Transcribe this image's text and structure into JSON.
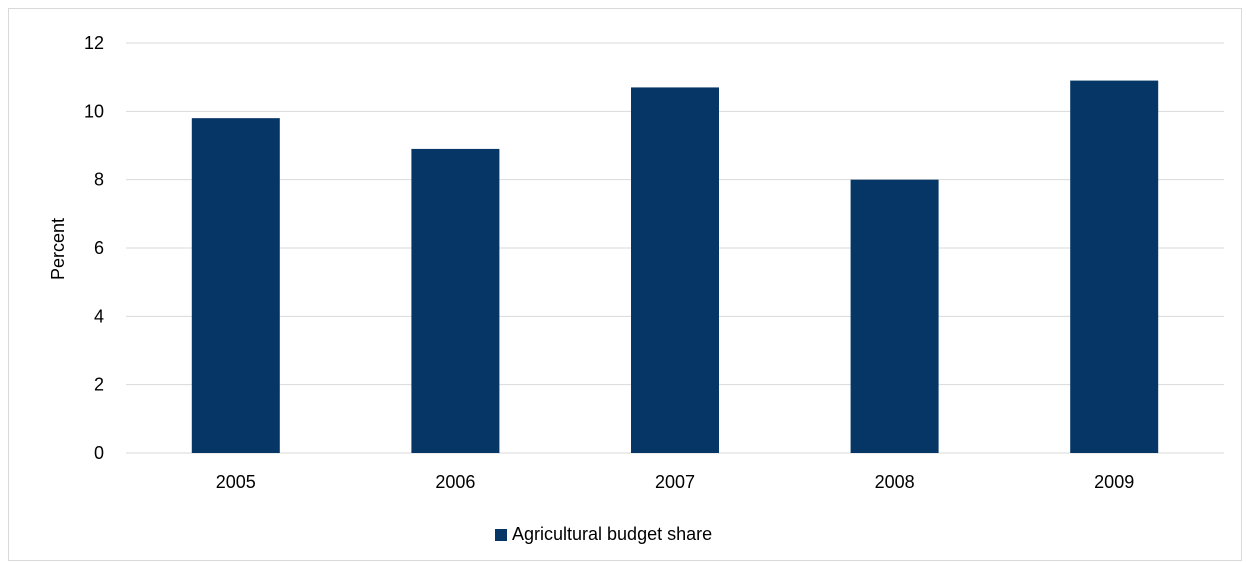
{
  "chart_data": {
    "type": "bar",
    "categories": [
      "2005",
      "2006",
      "2007",
      "2008",
      "2009"
    ],
    "series": [
      {
        "name": "Agricultural budget share",
        "values": [
          9.8,
          8.9,
          10.7,
          8.0,
          10.9
        ]
      }
    ],
    "ylabel": "Percent",
    "xlabel": "",
    "ylim": [
      0,
      12
    ],
    "yticks": [
      0,
      2,
      4,
      6,
      8,
      10,
      12
    ],
    "grid": true,
    "legend_position": "bottom",
    "colors": {
      "bar": "#063665",
      "grid": "#d9d9d9"
    }
  }
}
